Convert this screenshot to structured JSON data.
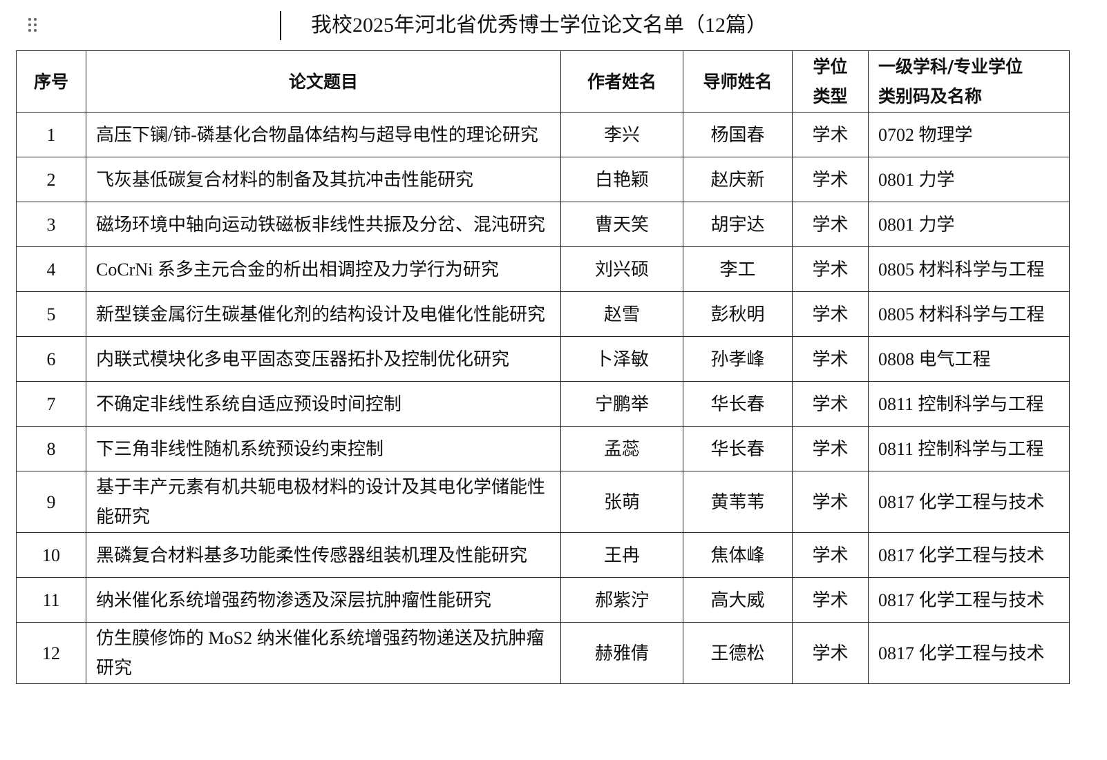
{
  "title": "我校2025年河北省优秀博士学位论文名单（12篇）",
  "table": {
    "header": [
      "序号",
      "论文题目",
      "作者姓名",
      "导师姓名",
      "学位类型",
      "一级学科/专业学位类别码及名称"
    ],
    "rows": [
      [
        "1",
        "高压下镧/铈-磷基化合物晶体结构与超导电性的理论研究",
        "李兴",
        "杨国春",
        "学术",
        "0702 物理学"
      ],
      [
        "2",
        "飞灰基低碳复合材料的制备及其抗冲击性能研究",
        "白艳颖",
        "赵庆新",
        "学术",
        "0801 力学"
      ],
      [
        "3",
        "磁场环境中轴向运动铁磁板非线性共振及分岔、混沌研究",
        "曹天笑",
        "胡宇达",
        "学术",
        "0801 力学"
      ],
      [
        "4",
        "CoCrNi 系多主元合金的析出相调控及力学行为研究",
        "刘兴硕",
        "李工",
        "学术",
        "0805 材料科学与工程"
      ],
      [
        "5",
        "新型镁金属衍生碳基催化剂的结构设计及电催化性能研究",
        "赵雪",
        "彭秋明",
        "学术",
        "0805 材料科学与工程"
      ],
      [
        "6",
        "内联式模块化多电平固态变压器拓扑及控制优化研究",
        "卜泽敏",
        "孙孝峰",
        "学术",
        "0808 电气工程"
      ],
      [
        "7",
        "不确定非线性系统自适应预设时间控制",
        "宁鹏举",
        "华长春",
        "学术",
        "0811 控制科学与工程"
      ],
      [
        "8",
        "下三角非线性随机系统预设约束控制",
        "孟蕊",
        "华长春",
        "学术",
        "0811 控制科学与工程"
      ],
      [
        "9",
        "基于丰产元素有机共轭电极材料的设计及其电化学储能性能研究",
        "张萌",
        "黄苇苇",
        "学术",
        "0817 化学工程与技术"
      ],
      [
        "10",
        "黑磷复合材料基多功能柔性传感器组装机理及性能研究",
        "王冉",
        "焦体峰",
        "学术",
        "0817 化学工程与技术"
      ],
      [
        "11",
        "纳米催化系统增强药物渗透及深层抗肿瘤性能研究",
        "郝紫泞",
        "高大威",
        "学术",
        "0817 化学工程与技术"
      ],
      [
        "12",
        "仿生膜修饰的 MoS2 纳米催化系统增强药物递送及抗肿瘤研究",
        "赫雅倩",
        "王德松",
        "学术",
        "0817 化学工程与技术"
      ]
    ]
  }
}
